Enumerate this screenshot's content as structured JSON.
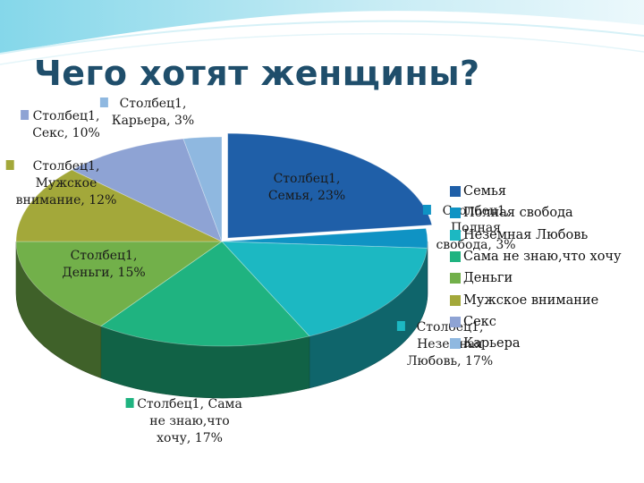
{
  "title": "Чего хотят женщины?",
  "chart_data": {
    "type": "pie",
    "style": "3d-exploded",
    "slices": [
      {
        "name": "Семья",
        "value": 23,
        "label": [
          "Столбец1,",
          "Семья, 23%"
        ],
        "color": "#1f5fa8"
      },
      {
        "name": "Полная свобода",
        "value": 3,
        "label": [
          "Столбец1,",
          "Полная",
          "свобода, 3%"
        ],
        "color": "#0f93c4"
      },
      {
        "name": "Неземная Любовь",
        "value": 17,
        "label": [
          "Столбец1,",
          "Неземная",
          "Любовь, 17%"
        ],
        "color": "#1cb8c2"
      },
      {
        "name": "Сама не знаю,что хочу",
        "value": 17,
        "label": [
          "Столбец1, Сама",
          "не знаю,что",
          "хочу, 17%"
        ],
        "color": "#1fb380"
      },
      {
        "name": "Деньги",
        "value": 15,
        "label": [
          "Столбец1,",
          "Деньги, 15%"
        ],
        "color": "#72b04a"
      },
      {
        "name": "Мужское внимание",
        "value": 12,
        "label": [
          "Столбец1,",
          "Мужское",
          "внимание, 12%"
        ],
        "color": "#a3a83a"
      },
      {
        "name": "Секс",
        "value": 10,
        "label": [
          "Столбец1,",
          "Секс, 10%"
        ],
        "color": "#8ea3d4"
      },
      {
        "name": "Карьера",
        "value": 3,
        "label": [
          "Столбец1,",
          "Карьера, 3%"
        ],
        "color": "#8fb8e0"
      }
    ],
    "legend": {
      "position": "right",
      "items": [
        "Семья",
        "Полная свобода",
        "Неземная Любовь",
        "Сама не знаю,что хочу",
        "Деньги",
        "Мужское внимание",
        "Секс",
        "Карьера"
      ]
    }
  }
}
